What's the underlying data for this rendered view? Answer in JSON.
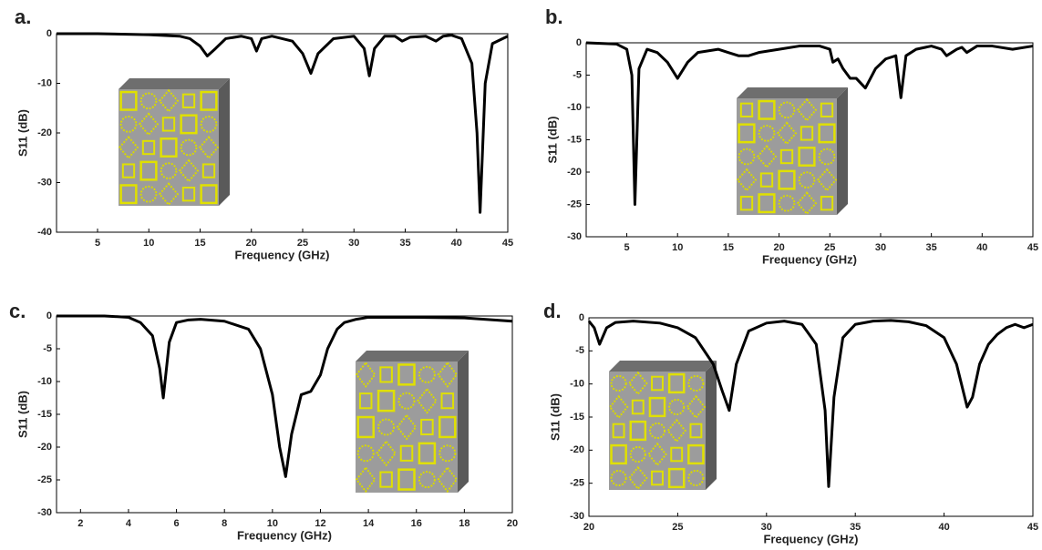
{
  "chart_data": [
    {
      "type": "line",
      "label": "a.",
      "xlabel": "Frequency (GHz)",
      "ylabel": "S11 (dB)",
      "color": "#000000",
      "xlim": [
        1,
        45
      ],
      "ylim": [
        -40,
        0
      ],
      "xticks": [
        5,
        10,
        15,
        20,
        25,
        30,
        35,
        40,
        45
      ],
      "yticks": [
        0,
        -10,
        -20,
        -30,
        -40
      ],
      "x": [
        1,
        5,
        10,
        13,
        14,
        15,
        15.7,
        16.5,
        17.5,
        19,
        20,
        20.5,
        21,
        22,
        24,
        25,
        25.8,
        26.5,
        28,
        30,
        31,
        31.5,
        32,
        33,
        34,
        34.7,
        35.5,
        37,
        38,
        38.7,
        39.5,
        40.5,
        41.5,
        42,
        42.3,
        42.8,
        43.5,
        45
      ],
      "values": [
        0,
        0,
        -0.2,
        -0.5,
        -1,
        -2.5,
        -4.5,
        -3,
        -1,
        -0.5,
        -1,
        -3.5,
        -1,
        -0.5,
        -1.5,
        -4,
        -8,
        -4,
        -1,
        -0.5,
        -3,
        -8.5,
        -3,
        -0.5,
        -0.5,
        -1.5,
        -0.7,
        -0.5,
        -1.5,
        -0.5,
        -0.3,
        -1,
        -6,
        -20,
        -36,
        -10,
        -2,
        -0.5
      ]
    },
    {
      "type": "line",
      "label": "b.",
      "xlabel": "Frequency (GHz)",
      "ylabel": "S11 (dB)",
      "color": "#000000",
      "xlim": [
        1,
        45
      ],
      "ylim": [
        -30,
        0
      ],
      "xticks": [
        5,
        10,
        15,
        20,
        25,
        30,
        35,
        40,
        45
      ],
      "yticks": [
        0,
        -5,
        -10,
        -15,
        -20,
        -25,
        -30
      ],
      "x": [
        1,
        4,
        5,
        5.5,
        5.8,
        6.2,
        7,
        8,
        9,
        10,
        11,
        12,
        14,
        15,
        16,
        17,
        18,
        20,
        22,
        24,
        25,
        25.3,
        25.8,
        26.3,
        27,
        27.6,
        28.5,
        29.5,
        30.5,
        31.5,
        32,
        32.5,
        33.5,
        35,
        36,
        36.5,
        37.5,
        38,
        38.5,
        39.5,
        41,
        43,
        45
      ],
      "values": [
        0,
        -0.2,
        -1,
        -5,
        -25,
        -4,
        -1,
        -1.5,
        -3,
        -5.5,
        -3,
        -1.5,
        -1,
        -1.5,
        -2,
        -2,
        -1.5,
        -1,
        -0.5,
        -0.5,
        -1,
        -3,
        -2.5,
        -4,
        -5.5,
        -5.5,
        -7,
        -4,
        -2.5,
        -2,
        -8.5,
        -2,
        -1,
        -0.5,
        -1,
        -2,
        -1,
        -0.7,
        -1.5,
        -0.5,
        -0.5,
        -1,
        -0.5
      ]
    },
    {
      "type": "line",
      "label": "c.",
      "xlabel": "Frequency (GHz)",
      "ylabel": "S11 (dB)",
      "color": "#000000",
      "xlim": [
        1,
        20
      ],
      "ylim": [
        -30,
        0
      ],
      "xticks": [
        2,
        4,
        6,
        8,
        10,
        12,
        14,
        16,
        18,
        20
      ],
      "yticks": [
        0,
        -5,
        -10,
        -15,
        -20,
        -25,
        -30
      ],
      "x": [
        1,
        3,
        4,
        4.5,
        5,
        5.3,
        5.45,
        5.7,
        6,
        6.5,
        7,
        8,
        9,
        9.5,
        10,
        10.3,
        10.55,
        10.8,
        11.2,
        11.6,
        12,
        12.3,
        12.7,
        13,
        13.5,
        14,
        16,
        18,
        20
      ],
      "values": [
        0,
        0,
        -0.2,
        -1,
        -3,
        -8,
        -12.5,
        -4,
        -1,
        -0.6,
        -0.5,
        -0.8,
        -2,
        -5,
        -12,
        -20,
        -24.5,
        -18,
        -12,
        -11.5,
        -9,
        -5,
        -2,
        -1,
        -0.5,
        -0.2,
        -0.2,
        -0.3,
        -0.8
      ]
    },
    {
      "type": "line",
      "label": "d.",
      "xlabel": "Frequency (GHz)",
      "ylabel": "S11 (dB)",
      "color": "#000000",
      "xlim": [
        20,
        45
      ],
      "ylim": [
        -30,
        0
      ],
      "xticks": [
        20,
        25,
        30,
        35,
        40,
        45
      ],
      "yticks": [
        0,
        -5,
        -10,
        -15,
        -20,
        -25,
        -30
      ],
      "x": [
        20,
        20.3,
        20.6,
        21,
        21.5,
        22.5,
        24,
        25,
        26,
        27,
        27.5,
        27.9,
        28.3,
        29,
        30,
        31,
        32,
        32.8,
        33.3,
        33.5,
        33.8,
        34.3,
        35,
        36,
        37,
        38,
        39,
        40,
        40.7,
        41.3,
        41.6,
        42,
        42.5,
        43,
        43.5,
        44,
        44.5,
        45
      ],
      "values": [
        -0.5,
        -1.5,
        -4,
        -1.5,
        -0.7,
        -0.5,
        -0.8,
        -1.5,
        -3,
        -7,
        -11,
        -14,
        -7,
        -2,
        -0.8,
        -0.5,
        -1,
        -4,
        -14,
        -25.5,
        -12,
        -3,
        -1,
        -0.5,
        -0.4,
        -0.6,
        -1.2,
        -3,
        -7,
        -13.5,
        -12,
        -7,
        -4,
        -2.5,
        -1.5,
        -1,
        -1.5,
        -1
      ]
    }
  ]
}
